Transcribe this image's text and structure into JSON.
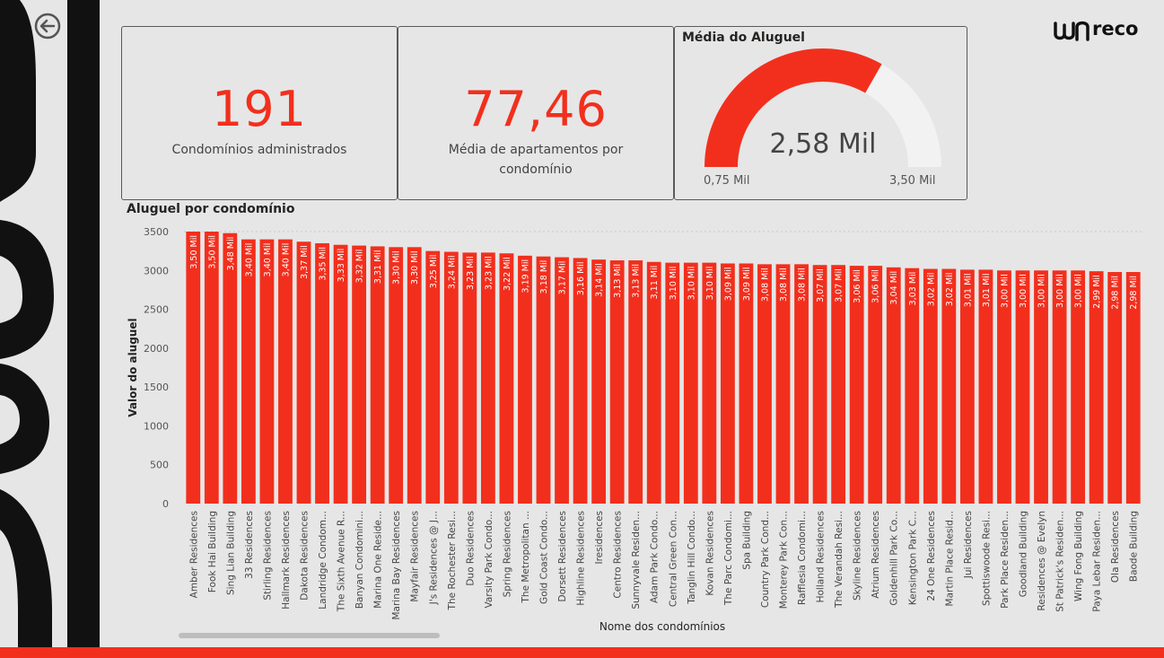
{
  "kpi1": {
    "value": "191",
    "label": "Condomínios administrados"
  },
  "kpi2": {
    "value": "77,46",
    "label": "Média de apartamentos por condomínio"
  },
  "gauge": {
    "title": "Média do Aluguel",
    "value_label": "2,58 Mil",
    "min_label": "0,75 Mil",
    "max_label": "3,50 Mil",
    "value": 2.58,
    "min": 0.75,
    "max": 3.5,
    "fill_color": "#f22f1d",
    "track_color": "#f2f2f2"
  },
  "logo": {
    "text": "reco"
  },
  "icons": {
    "back": "arrow-left-circle-icon",
    "logo": "brand-logo-icon"
  },
  "colors": {
    "accent": "#f22f1d",
    "background": "#e6e6e6"
  },
  "chart_data": {
    "type": "bar",
    "title": "Aluguel por condomínio",
    "xlabel": "Nome dos condomínios",
    "ylabel": "Valor do aluguel",
    "ylim": [
      0,
      3500
    ],
    "yticks": [
      0,
      500,
      1000,
      1500,
      2000,
      2500,
      3000,
      3500
    ],
    "grid": false,
    "color": "#f22f1d",
    "categories": [
      "Amber Residences",
      "Fook Hai Building",
      "Sing Lian Building",
      "33 Residences",
      "Stirling Residences",
      "Hallmark Residences",
      "Dakota Residences",
      "Landridge Condom...",
      "The Sixth Avenue R...",
      "Banyan Condomini...",
      "Marina One Reside...",
      "Marina Bay Residences",
      "Mayfair Residences",
      "J's Residences @ J...",
      "The Rochester Resi...",
      "Duo Residences",
      "Varsity Park Condo...",
      "Spring Residences",
      "The Metropolitan ...",
      "Gold Coast Condo...",
      "Dorsett Residences",
      "Highline Residences",
      "Iresidences",
      "Centro Residences",
      "Sunnyvale Residen...",
      "Adam Park Condo...",
      "Central Green Con...",
      "Tanglin Hill Condo...",
      "Kovan Residences",
      "The Parc Condomi...",
      "Spa Building",
      "Country Park Cond...",
      "Monterey Park Con...",
      "Rafflesia Condomi...",
      "Holland Residences",
      "The Verandah Resi...",
      "Skyline Residences",
      "Atrium Residences",
      "Goldenhill Park Co...",
      "Kensington Park C...",
      "24 One Residences",
      "Martin Place Resid...",
      "Jui Residences",
      "Spottiswoode Resi...",
      "Park Place Residen...",
      "Goodland Building",
      "Residences @ Evelyn",
      "St Patrick's Residen...",
      "Wing Fong Building",
      "Paya Lebar Residen...",
      "Ola Residences",
      "Baode Building"
    ],
    "values": [
      3500,
      3500,
      3480,
      3400,
      3400,
      3400,
      3370,
      3350,
      3330,
      3320,
      3310,
      3300,
      3300,
      3250,
      3240,
      3230,
      3230,
      3220,
      3190,
      3180,
      3170,
      3160,
      3140,
      3130,
      3130,
      3110,
      3100,
      3100,
      3100,
      3090,
      3090,
      3080,
      3080,
      3080,
      3070,
      3070,
      3060,
      3060,
      3040,
      3030,
      3020,
      3020,
      3010,
      3010,
      3000,
      3000,
      3000,
      3000,
      3000,
      2990,
      2980,
      2980
    ],
    "data_labels": [
      "3,50 Mil",
      "3,50 Mil",
      "3,48 Mil",
      "3,40 Mil",
      "3,40 Mil",
      "3,40 Mil",
      "3,37 Mil",
      "3,35 Mil",
      "3,33 Mil",
      "3,32 Mil",
      "3,31 Mil",
      "3,30 Mil",
      "3,30 Mil",
      "3,25 Mil",
      "3,24 Mil",
      "3,23 Mil",
      "3,23 Mil",
      "3,22 Mil",
      "3,19 Mil",
      "3,18 Mil",
      "3,17 Mil",
      "3,16 Mil",
      "3,14 Mil",
      "3,13 Mil",
      "3,13 Mil",
      "3,11 Mil",
      "3,10 Mil",
      "3,10 Mil",
      "3,10 Mil",
      "3,09 Mil",
      "3,09 Mil",
      "3,08 Mil",
      "3,08 Mil",
      "3,08 Mil",
      "3,07 Mil",
      "3,07 Mil",
      "3,06 Mil",
      "3,06 Mil",
      "3,04 Mil",
      "3,03 Mil",
      "3,02 Mil",
      "3,02 Mil",
      "3,01 Mil",
      "3,01 Mil",
      "3,00 Mil",
      "3,00 Mil",
      "3,00 Mil",
      "3,00 Mil",
      "3,00 Mil",
      "2,99 Mil",
      "2,98 Mil",
      "2,98 Mil"
    ]
  }
}
